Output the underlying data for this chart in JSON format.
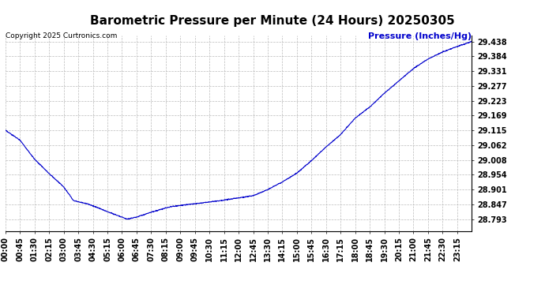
{
  "title": "Barometric Pressure per Minute (24 Hours) 20250305",
  "copyright": "Copyright 2025 Curtronics.com",
  "ylabel": "Pressure (Inches/Hg)",
  "line_color": "#0000cc",
  "ylabel_color": "#0000cc",
  "background_color": "#ffffff",
  "grid_color": "#bbbbbb",
  "yticks": [
    28.793,
    28.847,
    28.901,
    28.954,
    29.008,
    29.062,
    29.115,
    29.169,
    29.223,
    29.277,
    29.331,
    29.384,
    29.438
  ],
  "ylim": [
    28.75,
    29.46
  ],
  "xtick_labels": [
    "00:00",
    "00:45",
    "01:30",
    "02:15",
    "03:00",
    "03:45",
    "04:30",
    "05:15",
    "06:00",
    "06:45",
    "07:30",
    "08:15",
    "09:00",
    "09:45",
    "10:30",
    "11:15",
    "12:00",
    "12:45",
    "13:30",
    "14:15",
    "15:00",
    "15:45",
    "16:30",
    "17:15",
    "18:00",
    "18:45",
    "19:30",
    "20:15",
    "21:00",
    "21:45",
    "22:30",
    "23:15"
  ],
  "title_fontsize": 11,
  "tick_fontsize": 7,
  "copyright_fontsize": 6.5,
  "ylabel_fontsize": 8,
  "ctrl_t": [
    0,
    45,
    90,
    135,
    180,
    210,
    255,
    315,
    360,
    375,
    405,
    450,
    510,
    570,
    630,
    675,
    720,
    765,
    810,
    855,
    900,
    945,
    990,
    1035,
    1080,
    1125,
    1170,
    1215,
    1260,
    1305,
    1350,
    1395,
    1439
  ],
  "ctrl_p": [
    29.115,
    29.08,
    29.01,
    28.958,
    28.91,
    28.86,
    28.848,
    28.82,
    28.8,
    28.793,
    28.8,
    28.818,
    28.838,
    28.847,
    28.855,
    28.862,
    28.87,
    28.878,
    28.9,
    28.928,
    28.96,
    29.005,
    29.055,
    29.1,
    29.16,
    29.2,
    29.25,
    29.295,
    29.34,
    29.375,
    29.4,
    29.42,
    29.438
  ]
}
